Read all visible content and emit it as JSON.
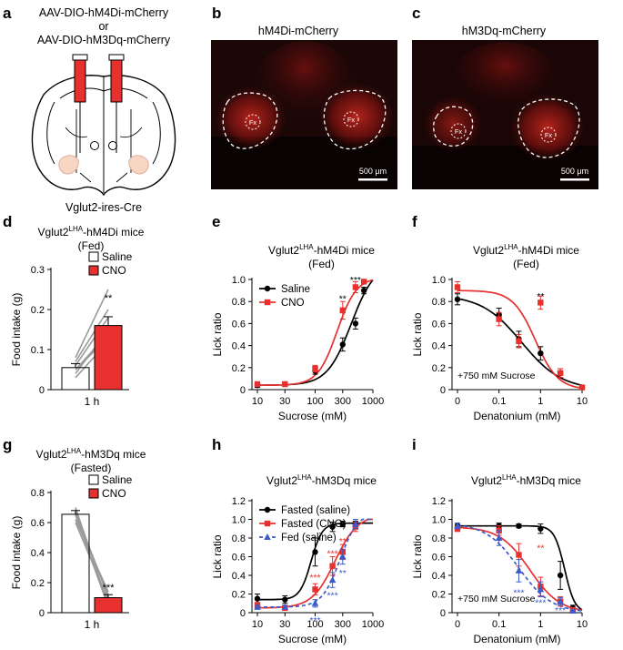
{
  "panel_letters": {
    "a": "a",
    "b": "b",
    "c": "c",
    "d": "d",
    "e": "e",
    "f": "f",
    "g": "g",
    "h": "h",
    "i": "i"
  },
  "panel_a": {
    "virus_line1": "AAV-DIO-hM4Di-mCherry",
    "virus_line2": "or",
    "virus_line3": "AAV-DIO-hM3Dq-mCherry",
    "mouse_line": "Vglut2-ires-Cre"
  },
  "panel_b": {
    "title": "hM4Di-mCherry",
    "fx_left": "Fx",
    "fx_right": "Fx",
    "scale": "500 μm"
  },
  "panel_c": {
    "title": "hM3Dq-mCherry",
    "fx_left": "Fx",
    "fx_right": "Fx",
    "scale": "500 μm"
  },
  "colors": {
    "black": "#000000",
    "red": "#e8302e",
    "blue": "#3b5bc9",
    "grey": "#9a9a9a",
    "micro_bg": "#1a0606",
    "micro_signal": "#c0201c"
  },
  "chart_data": [
    {
      "id": "d",
      "type": "bar",
      "title_main": "Vglut2",
      "title_sup": "LHA",
      "title_rest": "-hM4Di mice",
      "title_line2": "(Fed)",
      "ylabel": "Food intake (g)",
      "xlabel": "1 h",
      "ylim": [
        0,
        0.3
      ],
      "yticks": [
        0,
        0.1,
        0.2,
        0.3
      ],
      "ytick_labels": [
        "0",
        "0.1",
        "0.2",
        "0.3"
      ],
      "series": [
        {
          "name": "Saline",
          "value": 0.055,
          "err": 0.01
        },
        {
          "name": "CNO",
          "value": 0.16,
          "err": 0.022
        }
      ],
      "individual_pairs": [
        [
          0.03,
          0.12
        ],
        [
          0.04,
          0.15
        ],
        [
          0.05,
          0.13
        ],
        [
          0.06,
          0.18
        ],
        [
          0.07,
          0.2
        ],
        [
          0.08,
          0.25
        ],
        [
          0.05,
          0.14
        ]
      ],
      "significance": "**"
    },
    {
      "id": "g",
      "type": "bar",
      "title_main": "Vglut2",
      "title_sup": "LHA",
      "title_rest": "-hM3Dq mice",
      "title_line2": "(Fasted)",
      "ylabel": "Food intake (g)",
      "xlabel": "1 h",
      "ylim": [
        0,
        0.8
      ],
      "yticks": [
        0,
        0.2,
        0.4,
        0.6,
        0.8
      ],
      "ytick_labels": [
        "0",
        "0.2",
        "0.4",
        "0.6",
        "0.8"
      ],
      "series": [
        {
          "name": "Saline",
          "value": 0.655,
          "err": 0.025
        },
        {
          "name": "CNO",
          "value": 0.1,
          "err": 0.02
        }
      ],
      "individual_pairs": [
        [
          0.7,
          0.05
        ],
        [
          0.68,
          0.1
        ],
        [
          0.65,
          0.04
        ],
        [
          0.62,
          0.14
        ],
        [
          0.6,
          0.08
        ],
        [
          0.66,
          0.12
        ]
      ],
      "significance": "***"
    },
    {
      "id": "e",
      "type": "line",
      "title_main": "Vglut2",
      "title_sup": "LHA",
      "title_rest": "-hM4Di mice",
      "title_line2": "(Fed)",
      "xlabel": "Sucrose (mM)",
      "ylabel": "Lick ratio",
      "xscale": "log",
      "xlim": [
        10,
        1000
      ],
      "xticks": [
        10,
        30,
        100,
        300,
        1000
      ],
      "xtick_labels": [
        "10",
        "30",
        "100",
        "300",
        "1000"
      ],
      "ylim": [
        0,
        1.0
      ],
      "yticks": [
        0,
        0.2,
        0.4,
        0.6,
        0.8,
        1.0
      ],
      "ytick_labels": [
        "0",
        "0.2",
        "0.4",
        "0.6",
        "0.8",
        "1.0"
      ],
      "legend_position": "top-left",
      "x": [
        10,
        30,
        100,
        300,
        500,
        700
      ],
      "series": [
        {
          "name": "Saline",
          "style": "black-circle",
          "y": [
            0.04,
            0.05,
            0.17,
            0.41,
            0.6,
            0.9
          ],
          "err": [
            0.02,
            0.02,
            0.03,
            0.06,
            0.05,
            0.03
          ]
        },
        {
          "name": "CNO",
          "style": "red-square",
          "y": [
            0.05,
            0.05,
            0.19,
            0.72,
            0.93,
            0.98
          ],
          "err": [
            0.02,
            0.02,
            0.03,
            0.08,
            0.05,
            0.02
          ]
        }
      ],
      "fits": [
        {
          "series": "Saline",
          "ec50": 420,
          "hill": 2.1,
          "bottom": 0.04,
          "top": 1.15
        },
        {
          "series": "CNO",
          "ec50": 240,
          "hill": 2.6,
          "bottom": 0.04,
          "top": 1.02
        }
      ],
      "significance": [
        {
          "x": 300,
          "y": 0.83,
          "text": "**",
          "color": "black"
        },
        {
          "x": 500,
          "y": 1.0,
          "text": "***",
          "color": "black"
        }
      ]
    },
    {
      "id": "f",
      "type": "line",
      "title_main": "Vglut2",
      "title_sup": "LHA",
      "title_rest": "-hM4Di mice",
      "title_line2": "(Fed)",
      "xlabel": "Denatonium (mM)",
      "ylabel": "Lick ratio",
      "xscale": "log",
      "xlim": [
        0.01,
        10
      ],
      "xticks": [
        0.01,
        0.1,
        1,
        10
      ],
      "xtick_labels": [
        "0",
        "0.1",
        "1",
        "10"
      ],
      "ylim": [
        0,
        1.0
      ],
      "yticks": [
        0,
        0.2,
        0.4,
        0.6,
        0.8,
        1.0
      ],
      "ytick_labels": [
        "0",
        "0.2",
        "0.4",
        "0.6",
        "0.8",
        "1.0"
      ],
      "annotation": "+750 mM Sucrose",
      "x": [
        0.01,
        0.1,
        0.3,
        1,
        3,
        10
      ],
      "series": [
        {
          "name": "Saline",
          "style": "black-circle",
          "y": [
            0.82,
            0.68,
            0.46,
            0.33,
            0.15,
            0.02
          ],
          "err": [
            0.05,
            0.06,
            0.07,
            0.06,
            0.04,
            0.01
          ]
        },
        {
          "name": "CNO",
          "style": "red-square",
          "y": [
            0.93,
            0.64,
            0.44,
            0.79,
            0.15,
            0.02
          ],
          "err": [
            0.05,
            0.06,
            0.06,
            0.06,
            0.04,
            0.01
          ]
        }
      ],
      "fits": [
        {
          "series": "Saline",
          "ic50": 0.35,
          "hill": 0.9,
          "bottom": 0.0,
          "top": 0.86
        },
        {
          "series": "CNO",
          "ic50": 0.75,
          "hill": 1.6,
          "bottom": 0.0,
          "top": 0.9
        }
      ],
      "significance": [
        {
          "x": 1,
          "y": 0.85,
          "text": "**",
          "color": "black"
        }
      ]
    },
    {
      "id": "h",
      "type": "line",
      "title_main": "Vglut2",
      "title_sup": "LHA",
      "title_rest": "-hM3Dq mice",
      "title_line2": "",
      "xlabel": "Sucrose (mM)",
      "ylabel": "Lick ratio",
      "xscale": "log",
      "xlim": [
        10,
        1000
      ],
      "xticks": [
        10,
        30,
        100,
        300,
        1000
      ],
      "xtick_labels": [
        "10",
        "30",
        "100",
        "300",
        "1000"
      ],
      "ylim": [
        0,
        1.2
      ],
      "yticks": [
        0,
        0.2,
        0.4,
        0.6,
        0.8,
        1.0,
        1.2
      ],
      "ytick_labels": [
        "0",
        "0.2",
        "0.4",
        "0.6",
        "0.8",
        "1.0",
        "1.2"
      ],
      "legend_position": "top-left",
      "x": [
        10,
        30,
        100,
        200,
        300,
        500
      ],
      "series": [
        {
          "name": "Fasted (saline)",
          "style": "black-circle",
          "y": [
            0.15,
            0.14,
            0.65,
            0.92,
            0.95,
            0.95
          ],
          "err": [
            0.05,
            0.04,
            0.15,
            0.05,
            0.03,
            0.03
          ]
        },
        {
          "name": "Fasted (CNO)",
          "style": "red-square",
          "y": [
            0.08,
            0.05,
            0.25,
            0.5,
            0.65,
            0.92
          ],
          "err": [
            0.03,
            0.02,
            0.06,
            0.1,
            0.08,
            0.05
          ]
        },
        {
          "name": "Fed (saline)",
          "style": "blue-triangle-dashed",
          "y": [
            0.06,
            0.06,
            0.1,
            0.35,
            0.6,
            0.95
          ],
          "err": [
            0.02,
            0.02,
            0.04,
            0.08,
            0.08,
            0.05
          ]
        }
      ],
      "fits": [
        {
          "series": "Fasted (saline)",
          "ec50": 85,
          "hill": 4.5,
          "bottom": 0.14,
          "top": 0.96
        },
        {
          "series": "Fasted (CNO)",
          "ec50": 220,
          "hill": 2.2,
          "bottom": 0.05,
          "top": 1.05
        },
        {
          "series": "Fed (saline)",
          "ec50": 270,
          "hill": 2.8,
          "bottom": 0.06,
          "top": 1.08
        }
      ],
      "significance": [
        {
          "x": 100,
          "y": 0.38,
          "text": "***",
          "color": "red"
        },
        {
          "x": 200,
          "y": 0.64,
          "text": "***",
          "color": "red"
        },
        {
          "x": 300,
          "y": 0.77,
          "text": "**",
          "color": "red"
        },
        {
          "x": 100,
          "y": -0.08,
          "text": "***",
          "color": "blue"
        },
        {
          "x": 200,
          "y": 0.19,
          "text": "***",
          "color": "blue"
        },
        {
          "x": 300,
          "y": 0.43,
          "text": "**",
          "color": "blue"
        }
      ]
    },
    {
      "id": "i",
      "type": "line",
      "title_main": "Vglut2",
      "title_sup": "LHA",
      "title_rest": "-hM3Dq mice",
      "title_line2": "",
      "xlabel": "Denatonium (mM)",
      "ylabel": "Lick ratio",
      "xscale": "log",
      "xlim": [
        0.01,
        10
      ],
      "xticks": [
        0.01,
        0.1,
        1,
        10
      ],
      "xtick_labels": [
        "0",
        "0.1",
        "1",
        "10"
      ],
      "ylim": [
        0,
        1.2
      ],
      "yticks": [
        0,
        0.2,
        0.4,
        0.6,
        0.8,
        1.0,
        1.2
      ],
      "ytick_labels": [
        "0",
        "0.2",
        "0.4",
        "0.6",
        "0.8",
        "1.0",
        "1.2"
      ],
      "annotation": "+750 mM Sucrose",
      "x": [
        0.01,
        0.1,
        0.3,
        1,
        3,
        6
      ],
      "series": [
        {
          "name": "Fasted (saline)",
          "style": "black-circle",
          "y": [
            0.93,
            0.93,
            0.93,
            0.9,
            0.4,
            0.05
          ],
          "err": [
            0.03,
            0.03,
            0.02,
            0.05,
            0.15,
            0.03
          ]
        },
        {
          "name": "Fasted (CNO)",
          "style": "red-square",
          "y": [
            0.9,
            0.88,
            0.62,
            0.28,
            0.12,
            0.03
          ],
          "err": [
            0.03,
            0.05,
            0.12,
            0.1,
            0.05,
            0.02
          ]
        },
        {
          "name": "Fed (saline)",
          "style": "blue-triangle-dashed",
          "y": [
            0.93,
            0.8,
            0.45,
            0.25,
            0.12,
            0.02
          ],
          "err": [
            0.03,
            0.08,
            0.12,
            0.08,
            0.04,
            0.01
          ]
        }
      ],
      "fits": [
        {
          "series": "Fasted (saline)",
          "ic50": 3.8,
          "hill": 3.5,
          "bottom": 0.0,
          "top": 0.93
        },
        {
          "series": "Fasted (CNO)",
          "ic50": 0.55,
          "hill": 1.2,
          "bottom": 0.0,
          "top": 0.92
        },
        {
          "series": "Fed (saline)",
          "ic50": 0.3,
          "hill": 1.1,
          "bottom": 0.0,
          "top": 0.96
        }
      ],
      "significance": [
        {
          "x": 1,
          "y": 0.7,
          "text": "**",
          "color": "red"
        },
        {
          "x": 0.3,
          "y": 0.22,
          "text": "***",
          "color": "blue"
        },
        {
          "x": 1,
          "y": 0.11,
          "text": "***",
          "color": "blue"
        },
        {
          "x": 3,
          "y": 0.03,
          "text": "***",
          "color": "blue"
        }
      ]
    }
  ]
}
